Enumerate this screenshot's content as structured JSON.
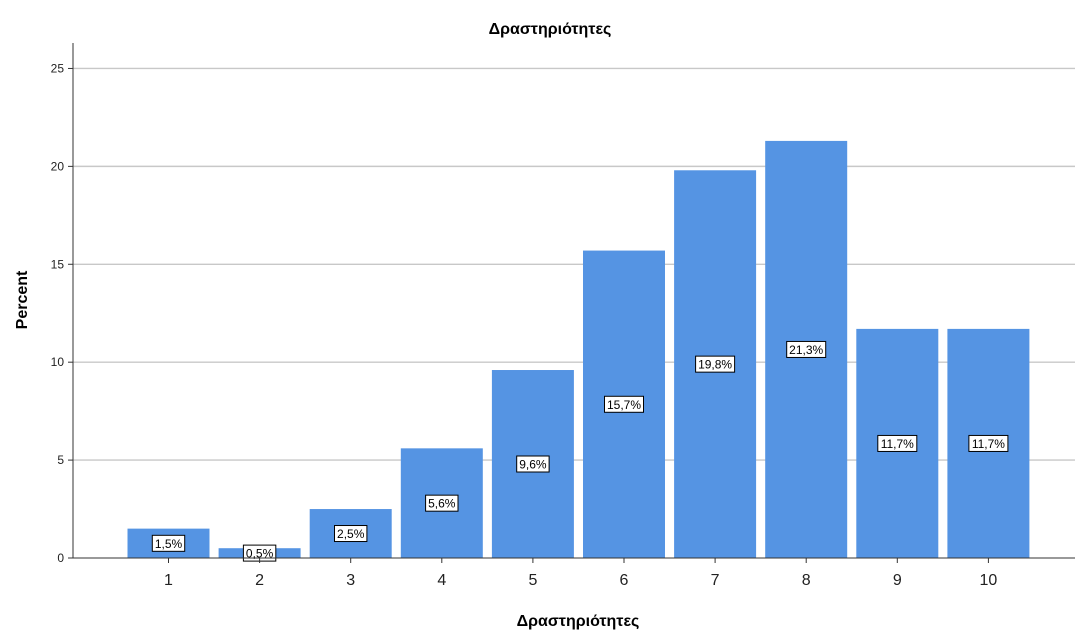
{
  "chart_data": {
    "type": "bar",
    "title": "Δραστηριότητες",
    "xlabel": "Δραστηριότητες",
    "ylabel": "Percent",
    "categories": [
      "1",
      "2",
      "3",
      "4",
      "5",
      "6",
      "7",
      "8",
      "9",
      "10"
    ],
    "values": [
      1.5,
      0.5,
      2.5,
      5.6,
      9.6,
      15.7,
      19.8,
      21.3,
      11.7,
      11.7
    ],
    "data_labels": [
      "1,5%",
      "0,5%",
      "2,5%",
      "5,6%",
      "9,6%",
      "15,7%",
      "19,8%",
      "21,3%",
      "11,7%",
      "11,7%"
    ],
    "yticks": [
      0,
      5,
      10,
      15,
      20,
      25
    ],
    "ylim": [
      0,
      26.3
    ],
    "grid": true,
    "legend": "none",
    "bar_color": "#5594e3",
    "grid_color": "#c8c8c8",
    "axis_color": "#333333"
  }
}
